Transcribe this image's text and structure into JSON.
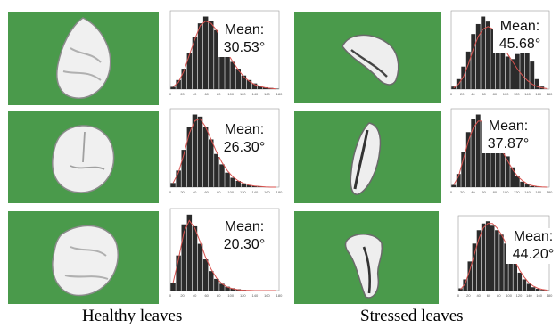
{
  "captions": {
    "healthy": "Healthy leaves",
    "stressed": "Stressed leaves"
  },
  "colors": {
    "background_green": "#4a9a4b",
    "bar": "#2b2b2b",
    "fit_curve": "#d9534f"
  },
  "chart_data": [
    {
      "type": "bar",
      "group": "healthy",
      "row": 1,
      "xlim": [
        0,
        180
      ],
      "mean_label": "Mean:",
      "mean_value": "30.53°",
      "x_ticks": [
        "0",
        "20",
        "40",
        "60",
        "80",
        "100",
        "120",
        "140",
        "160",
        "180"
      ],
      "values": [
        0.1,
        0.4,
        0.9,
        1.6,
        2.3,
        2.9,
        3.2,
        3.0,
        2.6,
        2.1,
        1.6,
        1.2,
        0.9,
        0.6,
        0.4,
        0.25,
        0.15,
        0.08,
        0.05,
        0.02
      ],
      "fit": [
        0.1,
        0.3,
        0.8,
        1.5,
        2.2,
        2.8,
        3.0,
        2.9,
        2.6,
        2.1,
        1.6,
        1.2,
        0.85,
        0.55,
        0.35,
        0.2,
        0.12,
        0.06,
        0.03,
        0.01
      ]
    },
    {
      "type": "bar",
      "group": "healthy",
      "row": 2,
      "xlim": [
        0,
        180
      ],
      "mean_label": "Mean:",
      "mean_value": "26.30°",
      "x_ticks": [
        "0",
        "20",
        "40",
        "60",
        "80",
        "100",
        "120",
        "140",
        "160",
        "180"
      ],
      "values": [
        0.2,
        0.8,
        1.8,
        2.9,
        3.5,
        3.4,
        2.9,
        2.3,
        1.6,
        1.1,
        0.7,
        0.45,
        0.3,
        0.18,
        0.1,
        0.06,
        0.03,
        0.02,
        0.01,
        0.0
      ],
      "fit": [
        0.2,
        0.7,
        1.6,
        2.6,
        3.2,
        3.3,
        2.9,
        2.3,
        1.7,
        1.2,
        0.8,
        0.5,
        0.3,
        0.18,
        0.1,
        0.05,
        0.03,
        0.01,
        0.0,
        0.0
      ]
    },
    {
      "type": "bar",
      "group": "healthy",
      "row": 3,
      "xlim": [
        0,
        180
      ],
      "mean_label": "Mean:",
      "mean_value": "20.30°",
      "x_ticks": [
        "0",
        "20",
        "40",
        "60",
        "80",
        "100",
        "120",
        "140",
        "160",
        "180"
      ],
      "values": [
        0.4,
        1.8,
        3.4,
        3.9,
        3.3,
        2.4,
        1.6,
        1.0,
        0.6,
        0.35,
        0.2,
        0.12,
        0.07,
        0.04,
        0.02,
        0.01,
        0.0,
        0.0,
        0.0,
        0.0
      ],
      "fit": [
        0.4,
        1.6,
        3.0,
        3.6,
        3.2,
        2.5,
        1.7,
        1.1,
        0.65,
        0.35,
        0.18,
        0.09,
        0.04,
        0.02,
        0.01,
        0.0,
        0.0,
        0.0,
        0.0,
        0.0
      ]
    },
    {
      "type": "bar",
      "group": "stressed",
      "row": 1,
      "xlim": [
        0,
        180
      ],
      "mean_label": "Mean:",
      "mean_value": "45.68°",
      "x_ticks": [
        "0",
        "20",
        "40",
        "60",
        "80",
        "100",
        "120",
        "140",
        "160",
        "180"
      ],
      "values": [
        0.1,
        0.4,
        0.9,
        1.5,
        2.2,
        2.6,
        2.9,
        2.7,
        2.4,
        2.0,
        1.6,
        1.3,
        1.2,
        1.4,
        1.9,
        2.4,
        1.1,
        0.4,
        0.1,
        0.0
      ],
      "fit": [
        0.05,
        0.2,
        0.5,
        1.0,
        1.6,
        2.1,
        2.4,
        2.5,
        2.4,
        2.1,
        1.8,
        1.4,
        1.1,
        0.8,
        0.55,
        0.35,
        0.2,
        0.1,
        0.05,
        0.02
      ]
    },
    {
      "type": "bar",
      "group": "stressed",
      "row": 2,
      "xlim": [
        0,
        180
      ],
      "mean_label": "Mean:",
      "mean_value": "37.87°",
      "x_ticks": [
        "0",
        "20",
        "40",
        "60",
        "80",
        "100",
        "120",
        "140",
        "160",
        "180"
      ],
      "values": [
        0.1,
        0.6,
        1.6,
        2.5,
        3.1,
        3.3,
        3.0,
        2.8,
        2.6,
        2.3,
        1.9,
        1.4,
        0.9,
        0.5,
        0.25,
        0.12,
        0.05,
        0.02,
        0.0,
        0.0
      ],
      "fit": [
        0.1,
        0.5,
        1.3,
        2.1,
        2.7,
        3.0,
        3.0,
        2.8,
        2.5,
        2.1,
        1.6,
        1.2,
        0.8,
        0.5,
        0.3,
        0.15,
        0.07,
        0.03,
        0.01,
        0.0
      ]
    },
    {
      "type": "bar",
      "group": "stressed",
      "row": 3,
      "xlim": [
        0,
        180
      ],
      "mean_label": "Mean:",
      "mean_value": "44.20°",
      "x_ticks": [
        "0",
        "20",
        "40",
        "60",
        "80",
        "100",
        "120",
        "140",
        "160",
        "180"
      ],
      "values": [
        0.1,
        0.5,
        1.3,
        2.1,
        2.7,
        3.0,
        3.1,
        2.9,
        2.7,
        2.5,
        2.1,
        1.7,
        1.2,
        0.8,
        0.5,
        0.3,
        0.15,
        0.08,
        0.03,
        0.01
      ],
      "fit": [
        0.05,
        0.3,
        0.9,
        1.6,
        2.3,
        2.8,
        3.0,
        3.0,
        2.8,
        2.5,
        2.1,
        1.7,
        1.3,
        0.9,
        0.6,
        0.35,
        0.2,
        0.1,
        0.05,
        0.02
      ]
    }
  ]
}
